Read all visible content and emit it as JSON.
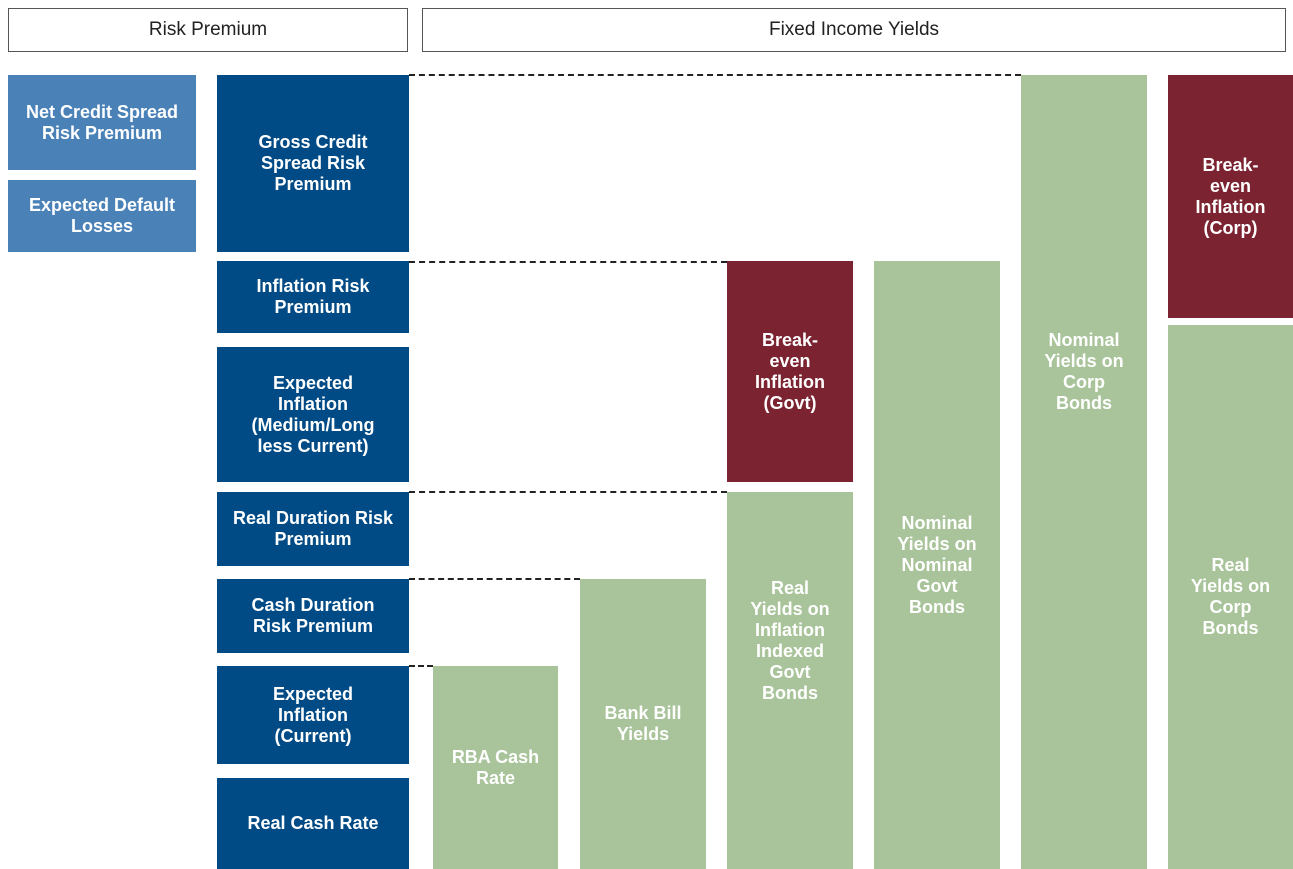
{
  "headers": {
    "risk_premium": "Risk Premium",
    "fixed_income_yields": "Fixed Income Yields"
  },
  "credit_components": [
    "Net Credit Spread Risk Premium",
    "Expected Default Losses"
  ],
  "risk_premium_boxes": [
    "Gross Credit Spread Risk Premium",
    "Inflation Risk Premium",
    "Expected Inflation (Medium/Long less Current)",
    "Real Duration Risk Premium",
    "Cash Duration Risk Premium",
    "Expected Inflation (Current)",
    "Real Cash Rate"
  ],
  "yield_bars": [
    "RBA Cash Rate",
    "Bank Bill Yields",
    "Real Yields on Inflation Indexed Govt Bonds",
    "Break-even Inflation (Govt)",
    "Nominal Yields on Nominal Govt Bonds",
    "Nominal Yields on Corp Bonds",
    "Break-even Inflation (Corp)",
    "Real Yields on Corp Bonds"
  ]
}
